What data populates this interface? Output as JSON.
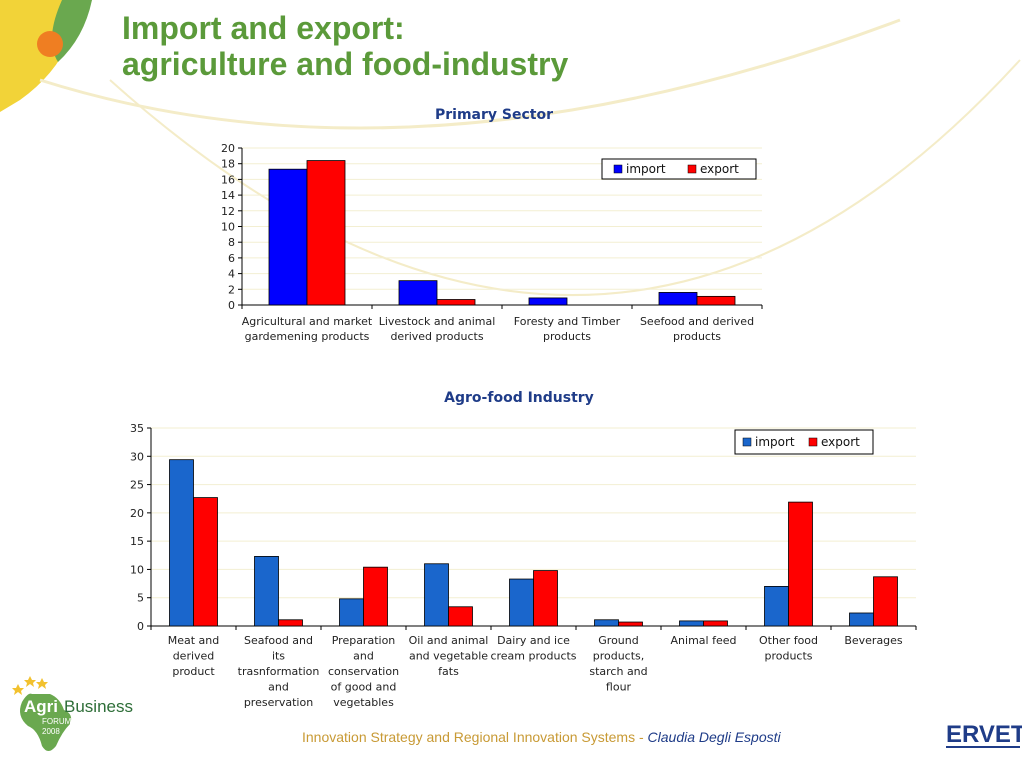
{
  "slide": {
    "title_line1": "Import and export:",
    "title_line2": "agriculture and food-industry",
    "footer_main": "Innovation Strategy and Regional Innovation Systems - ",
    "footer_author": "Claudia Degli Esposti"
  },
  "logos": {
    "agri_business": {
      "word1": "Agri",
      "word2": "Business",
      "word3": "FORUM",
      "year": "2008"
    },
    "ervet": {
      "text": "ERVET"
    }
  },
  "colors": {
    "import": "#0000ff",
    "export": "#ff0000",
    "import2": "#1a66cc",
    "title_green": "#5b9a3a",
    "chart_title": "#1f3c88"
  },
  "chart_data": [
    {
      "type": "bar",
      "title": "Primary Sector",
      "categories": [
        [
          "Agricultural and market",
          "gardemening products"
        ],
        [
          "Livestock and animal",
          "derived products"
        ],
        [
          "Foresty and Timber",
          "products"
        ],
        [
          "Seefood and derived",
          "products"
        ]
      ],
      "series": [
        {
          "name": "import",
          "values": [
            17.3,
            3.1,
            0.9,
            1.6
          ]
        },
        {
          "name": "export",
          "values": [
            18.4,
            0.7,
            0,
            1.1
          ]
        }
      ],
      "ylim": [
        0,
        20
      ],
      "yticks": [
        0,
        2,
        4,
        6,
        8,
        10,
        12,
        14,
        16,
        18,
        20
      ],
      "grid": true,
      "legend": "top-right"
    },
    {
      "type": "bar",
      "title": "Agro-food Industry",
      "categories": [
        [
          "Meat and",
          "derived",
          "product"
        ],
        [
          "Seafood and",
          "its",
          "trasnformation",
          "and",
          "preservation"
        ],
        [
          "Preparation",
          "and",
          "conservation",
          "of good and",
          "vegetables"
        ],
        [
          "Oil and animal",
          "and vegetable",
          "fats"
        ],
        [
          "Dairy and ice",
          "cream products"
        ],
        [
          "Ground",
          "products,",
          "starch and",
          "flour"
        ],
        [
          "Animal feed"
        ],
        [
          "Other food",
          "products"
        ],
        [
          "Beverages"
        ]
      ],
      "series": [
        {
          "name": "import",
          "values": [
            29.4,
            12.3,
            4.8,
            11.0,
            8.3,
            1.1,
            0.9,
            7.0,
            2.3
          ]
        },
        {
          "name": "export",
          "values": [
            22.7,
            1.1,
            10.4,
            3.4,
            9.8,
            0.7,
            0.9,
            21.9,
            8.7
          ]
        }
      ],
      "ylim": [
        0,
        35
      ],
      "yticks": [
        0,
        5,
        10,
        15,
        20,
        25,
        30,
        35
      ],
      "grid": true,
      "legend": "top-right"
    }
  ]
}
